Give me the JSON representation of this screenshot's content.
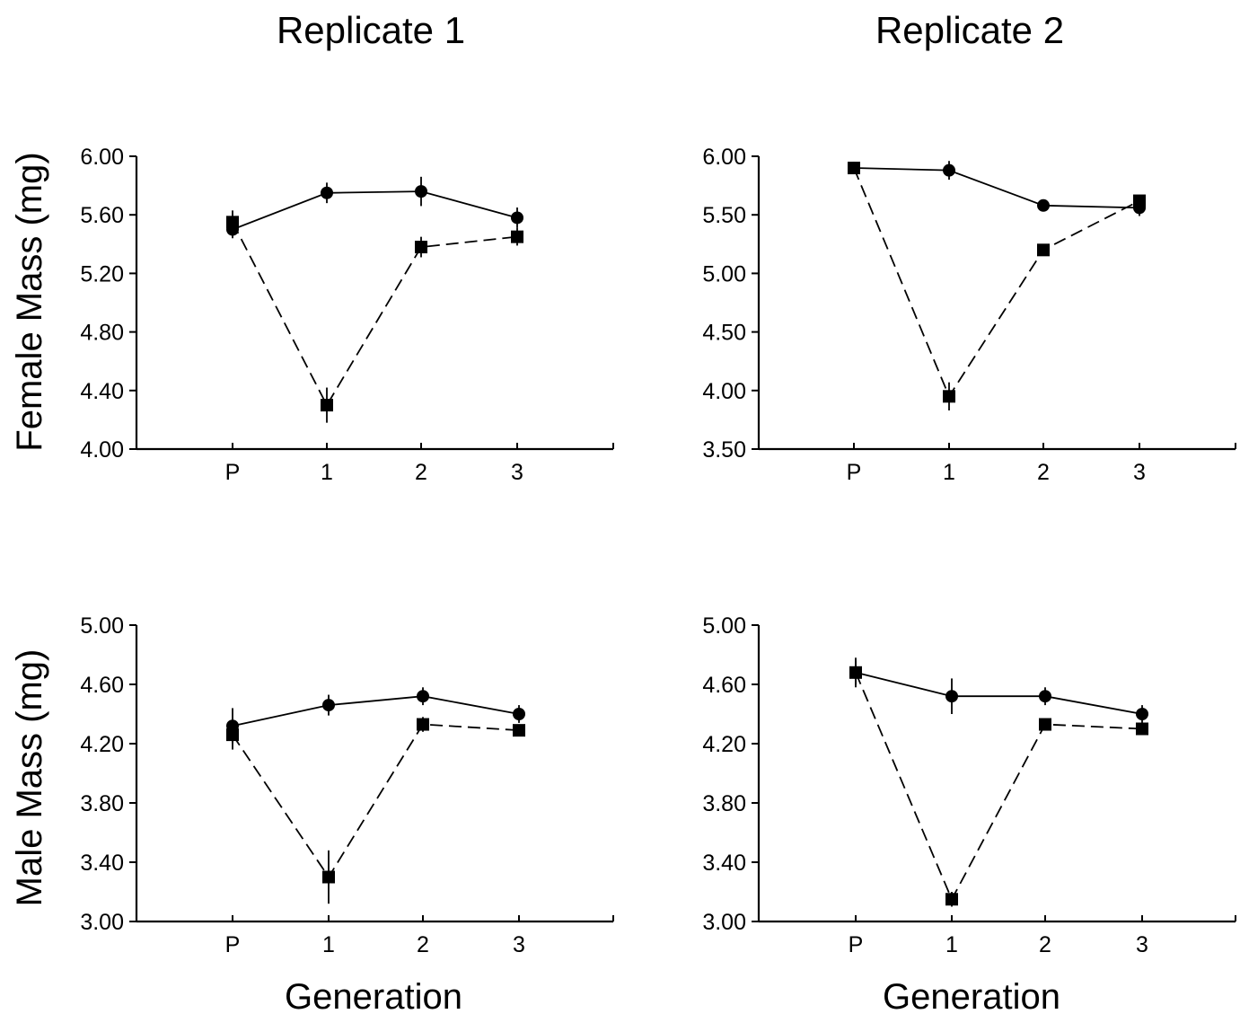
{
  "figure": {
    "column_titles": [
      "Replicate 1",
      "Replicate 2"
    ],
    "row_ylabels": [
      "Female Mass (mg)",
      "Male Mass (mg)"
    ],
    "xlabel": "Generation"
  },
  "chart_data": [
    {
      "type": "line",
      "panel": "Replicate 1 / Female",
      "xlabel": "",
      "ylabel": "Female Mass (mg)",
      "categories": [
        "P",
        "1",
        "2",
        "3"
      ],
      "ylim": [
        4.0,
        6.0
      ],
      "yticks": [
        4.0,
        4.4,
        4.8,
        5.2,
        5.6,
        6.0
      ],
      "ytick_labels": [
        "4.00",
        "4.40",
        "4.80",
        "5.20",
        "5.60",
        "6.00"
      ],
      "grid": false,
      "series": [
        {
          "marker": "circle",
          "line": "solid",
          "values": [
            5.5,
            5.75,
            5.76,
            5.58
          ],
          "errors": [
            0.06,
            0.07,
            0.1,
            0.07
          ]
        },
        {
          "marker": "square",
          "line": "dashed",
          "values": [
            5.55,
            4.3,
            5.38,
            5.45
          ],
          "errors": [
            0.08,
            0.12,
            0.07,
            0.06
          ]
        }
      ]
    },
    {
      "type": "line",
      "panel": "Replicate 2 / Female",
      "xlabel": "",
      "ylabel": "",
      "categories": [
        "P",
        "1",
        "2",
        "3"
      ],
      "ylim": [
        3.5,
        6.0
      ],
      "yticks": [
        3.5,
        4.0,
        4.5,
        5.0,
        5.5,
        6.0
      ],
      "ytick_labels": [
        "3.50",
        "4.00",
        "4.50",
        "5.00",
        "5.50",
        "6.00"
      ],
      "grid": false,
      "series": [
        {
          "marker": "circle",
          "line": "solid",
          "values": [
            5.9,
            5.88,
            5.58,
            5.56
          ],
          "errors": [
            0.05,
            0.08,
            0.04,
            0.07
          ]
        },
        {
          "marker": "square",
          "line": "dashed",
          "values": [
            5.9,
            3.95,
            5.2,
            5.62
          ],
          "errors": [
            0.04,
            0.12,
            0.05,
            0.05
          ]
        }
      ]
    },
    {
      "type": "line",
      "panel": "Replicate 1 / Male",
      "xlabel": "Generation",
      "ylabel": "Male Mass (mg)",
      "categories": [
        "P",
        "1",
        "2",
        "3"
      ],
      "ylim": [
        3.0,
        5.0
      ],
      "yticks": [
        3.0,
        3.4,
        3.8,
        4.2,
        4.6,
        5.0
      ],
      "ytick_labels": [
        "3.00",
        "3.40",
        "3.80",
        "4.20",
        "4.60",
        "5.00"
      ],
      "grid": false,
      "series": [
        {
          "marker": "circle",
          "line": "solid",
          "values": [
            4.32,
            4.46,
            4.52,
            4.4
          ],
          "errors": [
            0.12,
            0.07,
            0.06,
            0.06
          ]
        },
        {
          "marker": "square",
          "line": "dashed",
          "values": [
            4.26,
            3.3,
            4.33,
            4.29
          ],
          "errors": [
            0.1,
            0.18,
            0.05,
            0.04
          ]
        }
      ]
    },
    {
      "type": "line",
      "panel": "Replicate 2 / Male",
      "xlabel": "Generation",
      "ylabel": "",
      "categories": [
        "P",
        "1",
        "2",
        "3"
      ],
      "ylim": [
        3.0,
        5.0
      ],
      "yticks": [
        3.0,
        3.4,
        3.8,
        4.2,
        4.6,
        5.0
      ],
      "ytick_labels": [
        "3.00",
        "3.40",
        "3.80",
        "4.20",
        "4.60",
        "5.00"
      ],
      "grid": false,
      "series": [
        {
          "marker": "circle",
          "line": "solid",
          "values": [
            4.68,
            4.52,
            4.52,
            4.4
          ],
          "errors": [
            0.1,
            0.12,
            0.06,
            0.06
          ]
        },
        {
          "marker": "square",
          "line": "dashed",
          "values": [
            4.68,
            3.15,
            4.33,
            4.3
          ],
          "errors": [
            0.08,
            0.05,
            0.04,
            0.04
          ]
        }
      ]
    }
  ],
  "colors": {
    "ink": "#000000",
    "background": "#ffffff"
  }
}
